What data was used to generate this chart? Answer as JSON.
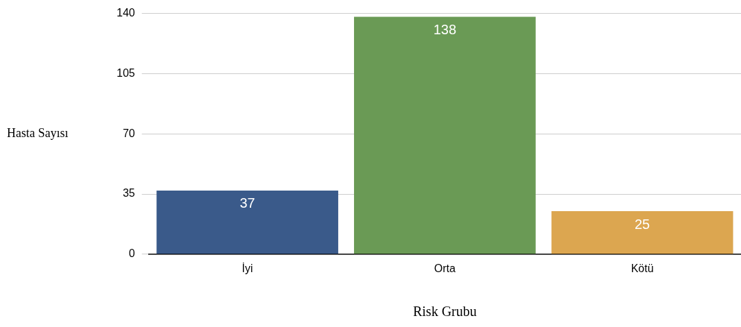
{
  "chart_data": {
    "type": "bar",
    "xlabel": "Risk Grubu",
    "ylabel": "Hasta Sayısı",
    "categories": [
      "İyi",
      "Orta",
      "Kötü"
    ],
    "values": [
      37,
      138,
      25
    ],
    "colors": [
      "#3a5a8a",
      "#6a9a55",
      "#dca650"
    ],
    "ylim": [
      0,
      140
    ],
    "yticks": [
      0,
      35,
      70,
      105,
      140
    ],
    "grid": "y",
    "data_labels": true,
    "legend": false
  }
}
